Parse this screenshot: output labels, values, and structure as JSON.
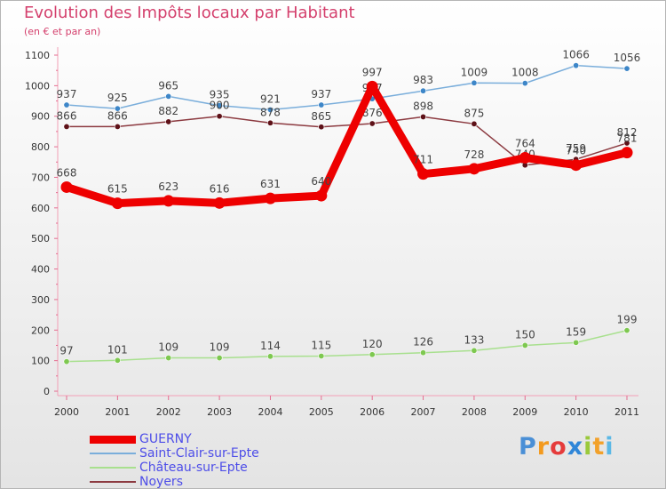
{
  "title": "Evolution des Impôts locaux par Habitant",
  "subtitle": "(en € et par an)",
  "brand": {
    "text": "Proxiti"
  },
  "chart_data": {
    "type": "line",
    "title": "Evolution des Impôts locaux par Habitant",
    "ylabel": "(en € et par an)",
    "xlabel": "",
    "ylim": [
      0,
      1100
    ],
    "yticks": [
      0,
      100,
      200,
      300,
      400,
      500,
      600,
      700,
      800,
      900,
      1000,
      1100
    ],
    "x": [
      "2000",
      "2001",
      "2002",
      "2003",
      "2004",
      "2005",
      "2006",
      "2007",
      "2008",
      "2009",
      "2010",
      "2011"
    ],
    "grid": false,
    "legend": "bottom-left",
    "series": [
      {
        "name": "Saint-Clair-sur-Epte",
        "color": "#7aaedb",
        "dot": "#3d86c8",
        "values": [
          937,
          925,
          965,
          935,
          921,
          937,
          957,
          983,
          1009,
          1008,
          1066,
          1056
        ]
      },
      {
        "name": "Noyers",
        "color": "#8c3a40",
        "dot": "#5e1118",
        "values": [
          866,
          866,
          882,
          900,
          878,
          865,
          876,
          898,
          875,
          740,
          759,
          812
        ]
      },
      {
        "name": "Château-sur-Epte",
        "color": "#a8e08e",
        "dot": "#7ec850",
        "values": [
          97,
          101,
          109,
          109,
          114,
          115,
          120,
          126,
          133,
          150,
          159,
          199
        ]
      },
      {
        "name": "GUERNY",
        "color": "#ee0000",
        "dot": "#ee0000",
        "values": [
          668,
          615,
          623,
          616,
          631,
          640,
          997,
          711,
          728,
          764,
          740,
          781
        ]
      }
    ],
    "legend_order": [
      "GUERNY",
      "Saint-Clair-sur-Epte",
      "Château-sur-Epte",
      "Noyers"
    ]
  }
}
